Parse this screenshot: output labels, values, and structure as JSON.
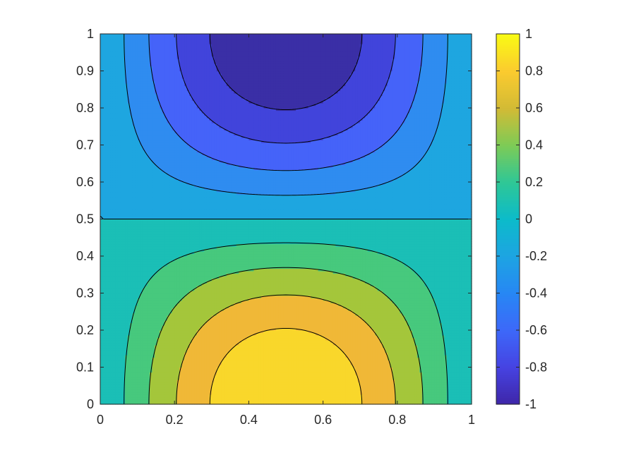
{
  "chart_data": {
    "type": "heatmap",
    "subtype": "filled-contour",
    "title": "",
    "xlabel": "",
    "ylabel": "",
    "xlim": [
      0,
      1
    ],
    "ylim": [
      0,
      1
    ],
    "x_ticks": [
      "0",
      "0.2",
      "0.4",
      "0.6",
      "0.8",
      "1"
    ],
    "y_ticks": [
      "0",
      "0.1",
      "0.2",
      "0.3",
      "0.4",
      "0.5",
      "0.6",
      "0.7",
      "0.8",
      "0.9",
      "1"
    ],
    "colorbar": {
      "range": [
        -1,
        1
      ],
      "ticks": [
        "-1",
        "-0.8",
        "-0.6",
        "-0.4",
        "-0.2",
        "0",
        "0.2",
        "0.4",
        "0.6",
        "0.8",
        "1"
      ],
      "colormap": "parula"
    },
    "contour_levels": [
      -0.8,
      -0.6,
      -0.4,
      -0.2,
      0,
      0.2,
      0.4,
      0.6,
      0.8
    ],
    "field": "sin(pi*x) * cos(pi*y)",
    "level_colors": {
      "below_-0.8": "#3a2fa6",
      "-0.8_to_-0.6": "#4144db",
      "-0.6_to_-0.4": "#4563f9",
      "-0.4_to_-0.2": "#2f8cf0",
      "-0.2_to_0": "#1ea6e0",
      "0_to_0.2": "#1bbfb6",
      "0.2_to_0.4": "#47c97d",
      "0.4_to_0.6": "#a4c63b",
      "0.6_to_0.8": "#f0b837",
      "above_0.8": "#f9d72b"
    },
    "grid": false,
    "legend": "colorbar-right"
  }
}
